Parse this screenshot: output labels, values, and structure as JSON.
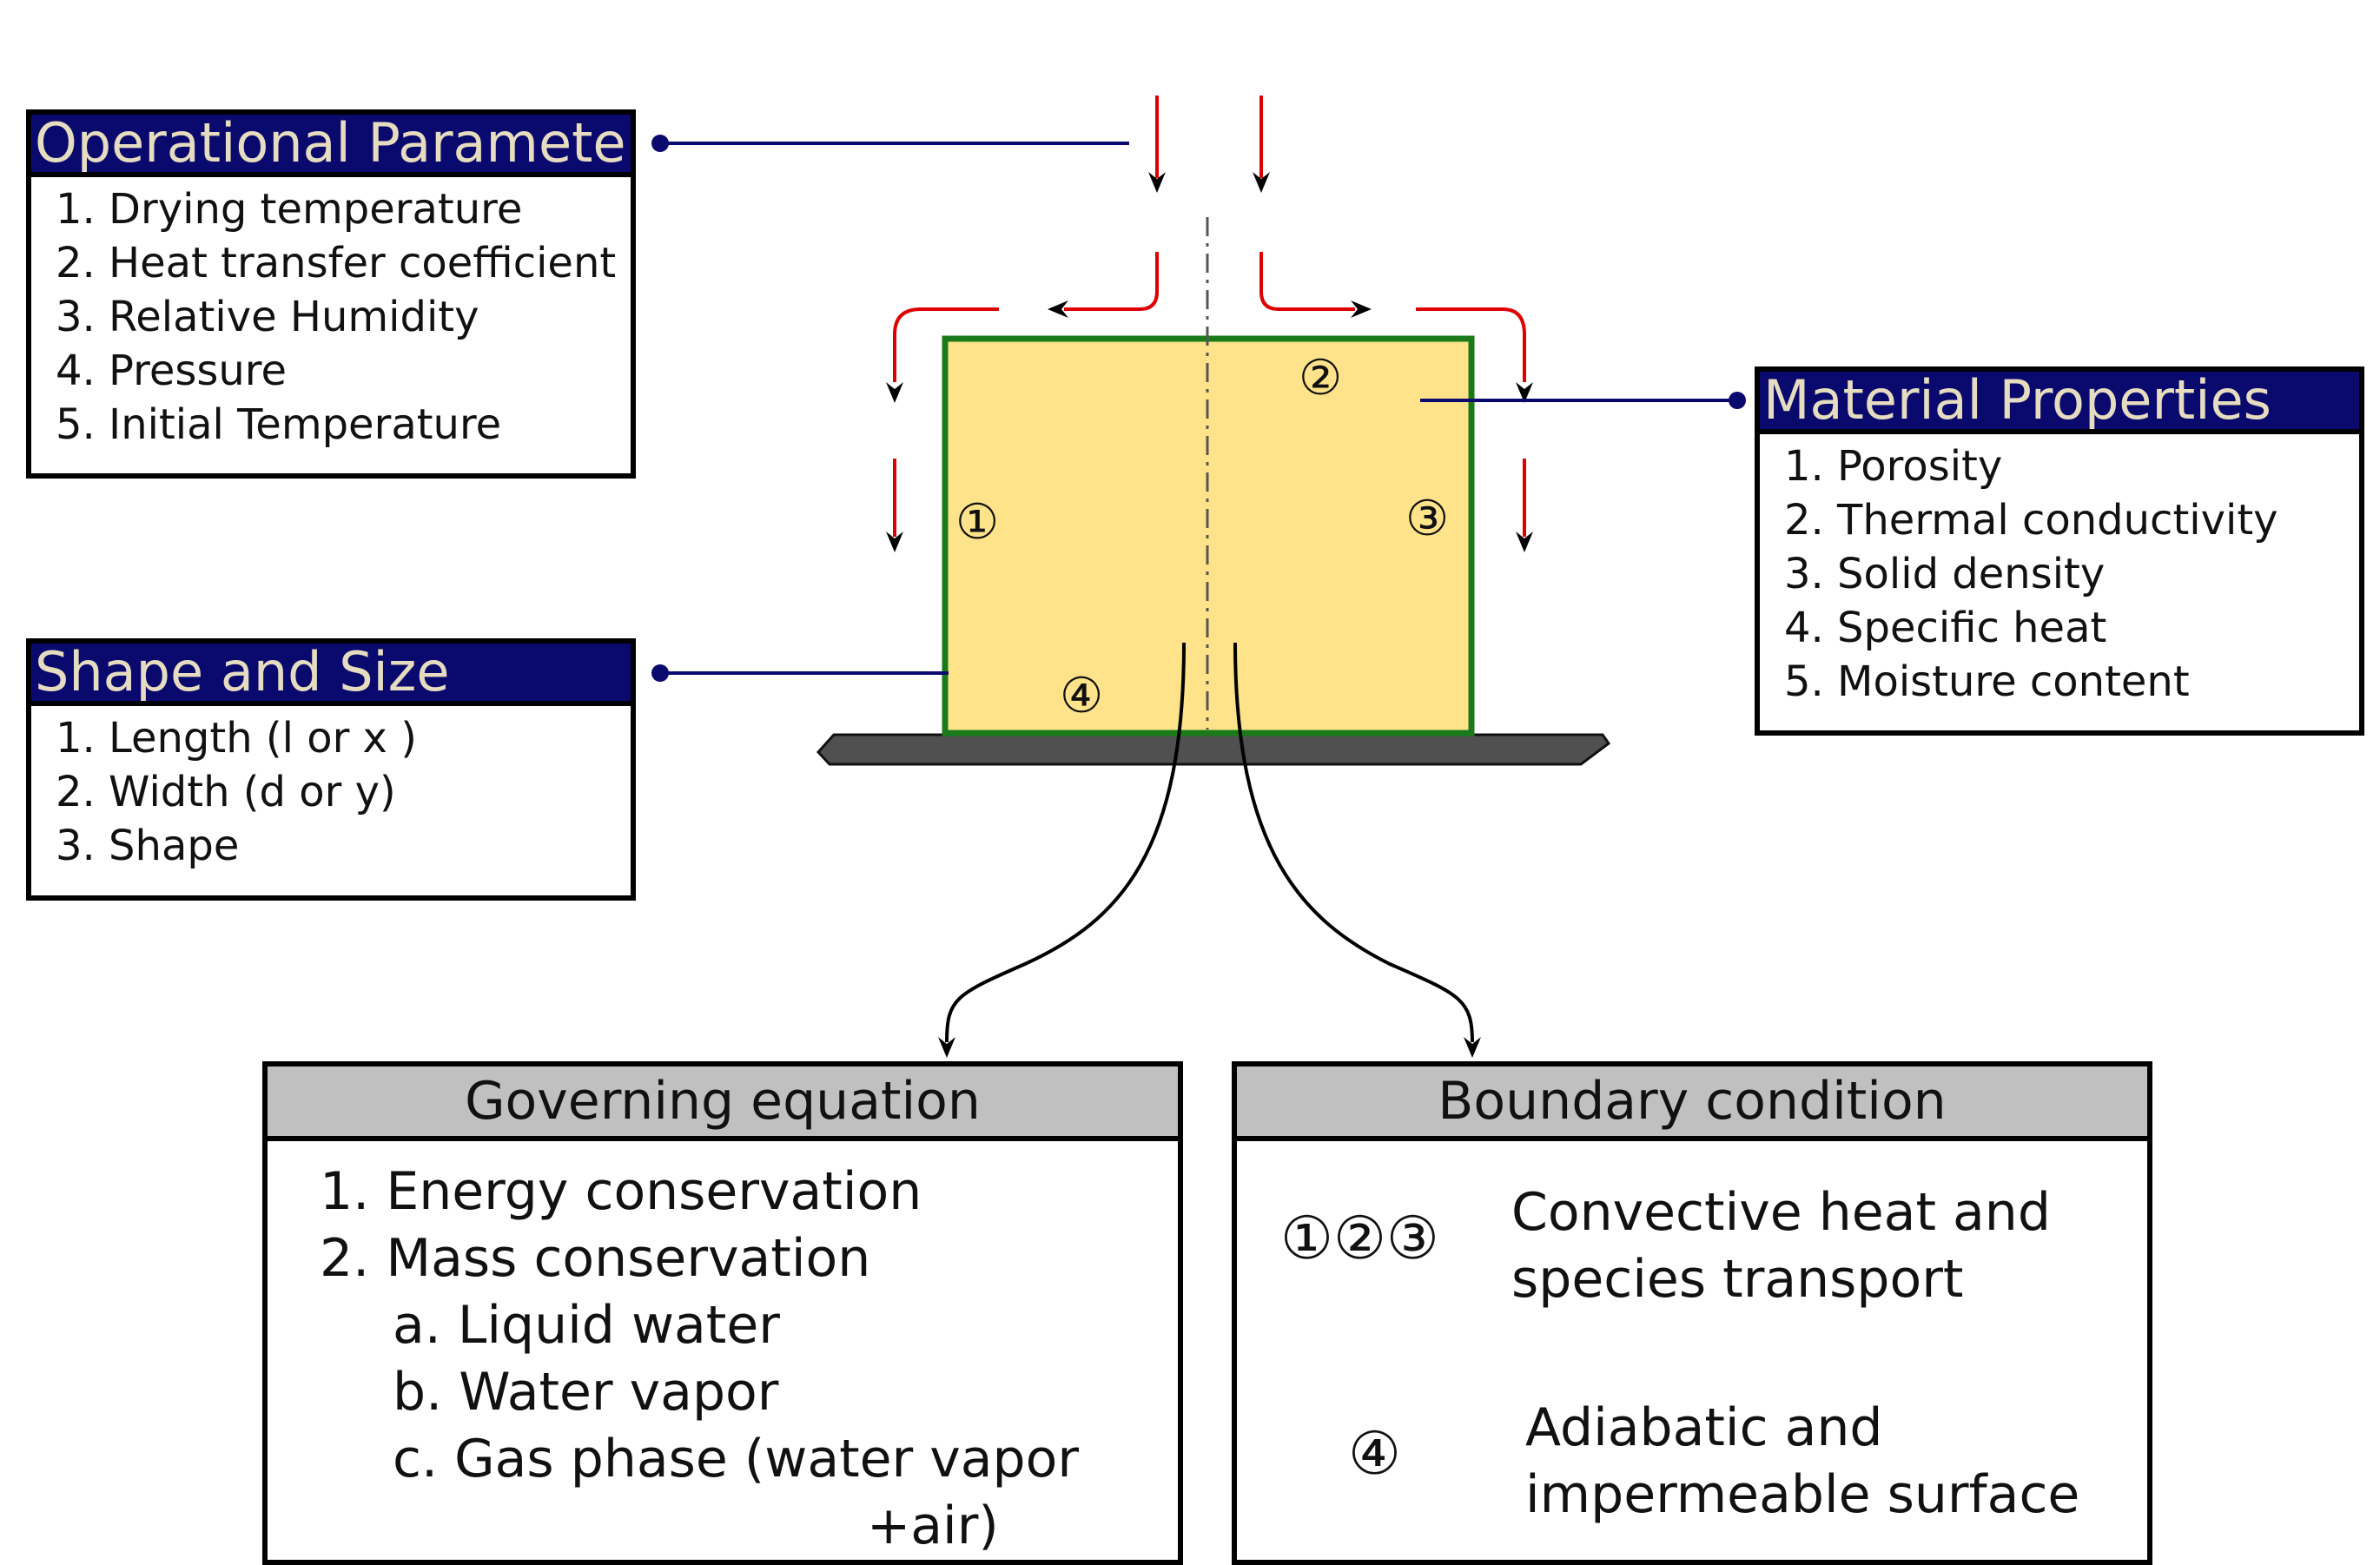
{
  "operational": {
    "title": "Operational Parameter",
    "items": [
      "1. Drying temperature",
      "2. Heat transfer coefficient",
      "3. Relative Humidity",
      "4. Pressure",
      "5. Initial Temperature"
    ]
  },
  "shape": {
    "title": "Shape and Size",
    "items": [
      "1. Length (l or x )",
      "2. Width (d or y)",
      "3. Shape"
    ]
  },
  "material": {
    "title": "Material Properties",
    "items": [
      "1. Porosity",
      "2. Thermal conductivity",
      "3. Solid density",
      "4. Specific heat",
      "5. Moisture content"
    ]
  },
  "governing": {
    "title": "Governing equation",
    "items": [
      "1. Energy conservation",
      "2. Mass conservation",
      "a. Liquid water",
      "b. Water vapor",
      "c. Gas phase (water vapor",
      "+air)"
    ]
  },
  "boundary": {
    "title": "Boundary condition",
    "markers_1": "①②③",
    "text_1": [
      "Convective heat and",
      "species transport"
    ],
    "marker_2": "④",
    "text_2": [
      "Adiabatic and",
      "impermeable surface"
    ]
  },
  "sample_labels": {
    "left": "①",
    "top": "②",
    "right": "③",
    "bottom": "④"
  },
  "colors": {
    "header_blue": "#0a0a6e",
    "header_text": "#e6dcc0",
    "header_gray": "#c0c0c0",
    "sample_fill": "#ffe38a",
    "sample_border": "#1a7a1a",
    "airflow": "#dd0000",
    "connector": "#0a0a6e",
    "tray": "#505050"
  }
}
